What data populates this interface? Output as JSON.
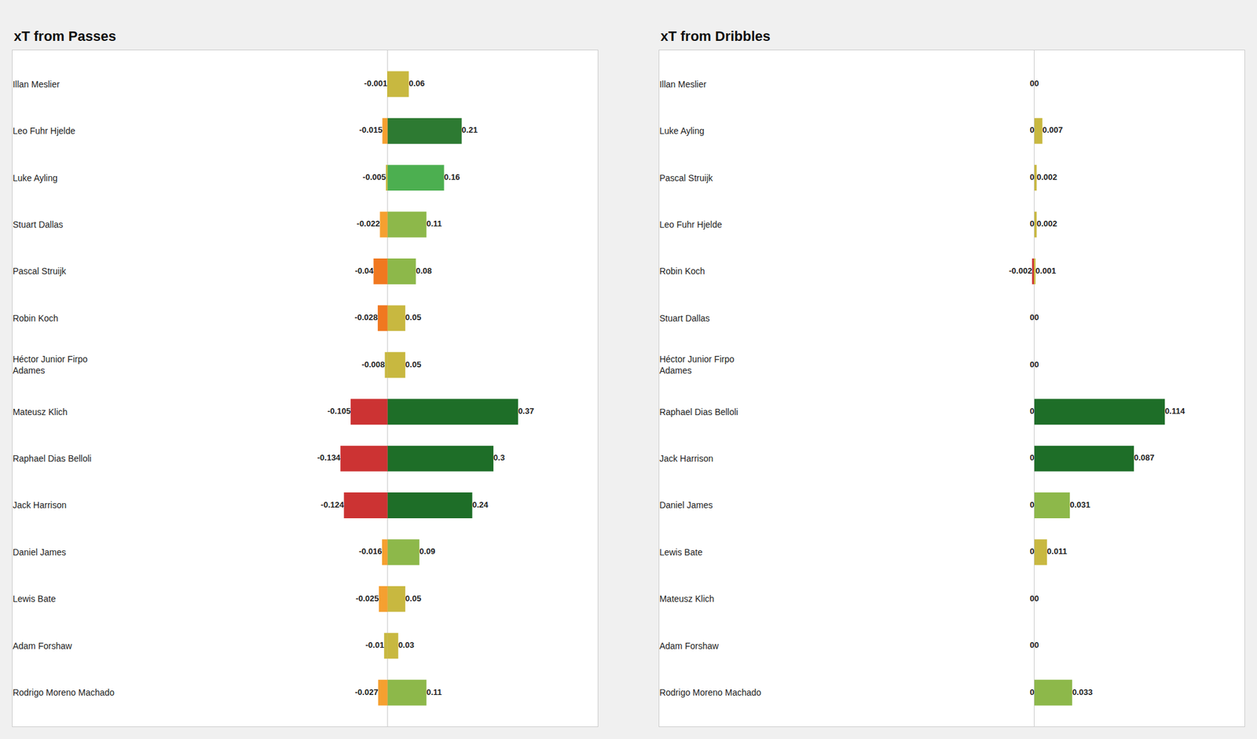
{
  "chart_data": [
    {
      "type": "bar",
      "orientation": "horizontal",
      "title": "xT from Passes",
      "categories": [
        "Illan Meslier",
        "Leo Fuhr Hjelde",
        "Luke Ayling",
        "Stuart Dallas",
        "Pascal Struijk",
        "Robin Koch",
        "Héctor Junior Firpo\nAdames",
        "Mateusz Klich",
        "Raphael Dias Belloli",
        "Jack Harrison",
        "Daniel James",
        "Lewis Bate",
        "Adam Forshaw",
        "Rodrigo Moreno Machado"
      ],
      "series": [
        {
          "values": [
            -0.001,
            -0.015,
            -0.005,
            -0.022,
            -0.04,
            -0.028,
            -0.008,
            -0.105,
            -0.134,
            -0.124,
            -0.016,
            -0.025,
            -0.01,
            -0.027
          ],
          "colors": [
            "#c8b840",
            "#f5a030",
            "#c8b840",
            "#f5a030",
            "#f07820",
            "#f07820",
            "#c8b840",
            "#cc3333",
            "#cc3333",
            "#cc3333",
            "#f5a030",
            "#f5a030",
            "#c8b840",
            "#f5a030"
          ]
        },
        {
          "values": [
            0.06,
            0.21,
            0.16,
            0.11,
            0.08,
            0.05,
            0.05,
            0.37,
            0.3,
            0.24,
            0.09,
            0.05,
            0.03,
            0.11
          ],
          "colors": [
            "#c8b840",
            "#2d7a32",
            "#4caf50",
            "#8db84a",
            "#8db84a",
            "#c8b840",
            "#c8b840",
            "#1e6e28",
            "#1e6e28",
            "#1e6e28",
            "#8db84a",
            "#c8b840",
            "#c8b840",
            "#8db84a"
          ]
        }
      ],
      "xlim": [
        -1.06375,
        0.5957
      ],
      "data_labels": true,
      "grid": false,
      "tick_labels": "y"
    },
    {
      "type": "bar",
      "orientation": "horizontal",
      "title": "xT from Dribbles",
      "categories": [
        "Illan Meslier",
        "Luke Ayling",
        "Pascal Struijk",
        "Leo Fuhr Hjelde",
        "Robin Koch",
        "Stuart Dallas",
        "Héctor Junior Firpo\nAdames",
        "Raphael Dias Belloli",
        "Jack Harrison",
        "Daniel James",
        "Lewis Bate",
        "Mateusz Klich",
        "Adam Forshaw",
        "Rodrigo Moreno Machado"
      ],
      "series": [
        {
          "values": [
            0,
            0,
            0,
            0,
            -0.002,
            0,
            0,
            0,
            0,
            0,
            0,
            0,
            0,
            0
          ],
          "colors": [
            "#c8b840",
            "#c8b840",
            "#c8b840",
            "#c8b840",
            "#cc3333",
            "#c8b840",
            "#c8b840",
            "#c8b840",
            "#c8b840",
            "#c8b840",
            "#c8b840",
            "#c8b840",
            "#c8b840",
            "#c8b840"
          ]
        },
        {
          "values": [
            0,
            0.007,
            0.002,
            0.002,
            0.001,
            0,
            0,
            0.114,
            0.087,
            0.031,
            0.011,
            0,
            0,
            0.033
          ],
          "colors": [
            "#c8b840",
            "#c8b840",
            "#c8b840",
            "#c8b840",
            "#c8b840",
            "#c8b840",
            "#c8b840",
            "#1e6e28",
            "#1e6e28",
            "#8db84a",
            "#c8b840",
            "#c8b840",
            "#c8b840",
            "#8db84a"
          ]
        }
      ],
      "xlim": [
        -0.32775,
        0.18354
      ],
      "data_labels": true,
      "grid": false,
      "tick_labels": "y"
    }
  ]
}
